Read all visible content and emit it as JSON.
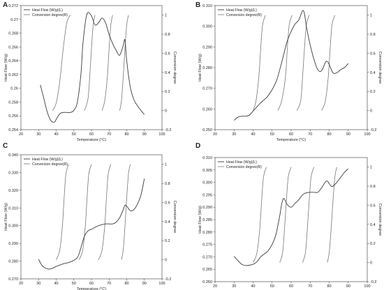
{
  "figure": {
    "colors": {
      "axis": "#333333",
      "heat_flow": "#3a3a3a",
      "conversion": "#777777",
      "background": "#ffffff"
    }
  },
  "chart_data": [
    {
      "panel": "A",
      "type": "line",
      "xlabel": "Temperature (°C)",
      "ylabel_left": "Heat Flow (W/g)",
      "ylabel_right": "Conversion degree",
      "xlim": [
        20,
        100
      ],
      "ylim_left": [
        0.254,
        0.272
      ],
      "ylim_right": [
        -0.2,
        1.1
      ],
      "x_ticks": [
        "20",
        "30",
        "40",
        "50",
        "60",
        "70",
        "80",
        "90",
        "100"
      ],
      "y_ticks_left": [
        "0.254",
        "0.256",
        "0.258",
        "0.26",
        "0.262",
        "0.264",
        "0.266",
        "0.268",
        "0.27",
        "0.272"
      ],
      "y_ticks_right": [
        "-0.2",
        "0",
        "0.2",
        "0.4",
        "0.6",
        "0.8",
        "1"
      ],
      "legend": [
        "Heat Flow (W/g)(L)",
        "Conversion degree(R)"
      ],
      "legend_position": "top-left",
      "grid": false,
      "series": [
        {
          "name": "Heat Flow (W/g)(L)",
          "axis": "left",
          "x": [
            31,
            33,
            35,
            37,
            39,
            40,
            42,
            44,
            46,
            48,
            50,
            52,
            54,
            55,
            56,
            57,
            58,
            60,
            62,
            64,
            66,
            68,
            70,
            72,
            74,
            76,
            78,
            79,
            80,
            82,
            84,
            86,
            88,
            90
          ],
          "y": [
            0.2605,
            0.2585,
            0.2565,
            0.2553,
            0.2551,
            0.2555,
            0.2563,
            0.2565,
            0.2565,
            0.2565,
            0.2568,
            0.258,
            0.262,
            0.266,
            0.2685,
            0.2703,
            0.271,
            0.2705,
            0.2692,
            0.2695,
            0.2702,
            0.2695,
            0.2678,
            0.2665,
            0.2655,
            0.2648,
            0.2662,
            0.267,
            0.264,
            0.2602,
            0.2584,
            0.2575,
            0.2568,
            0.2562
          ]
        },
        {
          "name": "Conversion degree(R)",
          "axis": "right",
          "curves": [
            {
              "x": [
                38,
                40,
                42,
                44,
                46,
                48
              ],
              "y": [
                0,
                0.08,
                0.3,
                0.65,
                0.92,
                1
              ]
            },
            {
              "x": [
                56,
                58,
                59,
                60,
                61,
                62
              ],
              "y": [
                0,
                0.12,
                0.35,
                0.65,
                0.9,
                1
              ]
            },
            {
              "x": [
                66,
                67.5,
                69,
                70,
                71,
                72
              ],
              "y": [
                0,
                0.1,
                0.35,
                0.65,
                0.9,
                1
              ]
            },
            {
              "x": [
                76,
                77,
                78,
                79,
                80,
                81
              ],
              "y": [
                0,
                0.1,
                0.35,
                0.65,
                0.9,
                1
              ]
            }
          ]
        }
      ]
    },
    {
      "panel": "B",
      "type": "line",
      "xlabel": "Temperature (°C)",
      "ylabel_left": "Heat Flow (W/g)",
      "ylabel_right": "Conversion degree",
      "xlim": [
        20,
        100
      ],
      "ylim_left": [
        0.25,
        0.31
      ],
      "ylim_right": [
        -0.2,
        1.1
      ],
      "x_ticks": [
        "20",
        "30",
        "40",
        "50",
        "60",
        "70",
        "80",
        "90",
        "100"
      ],
      "y_ticks_left": [
        "0.250",
        "0.260",
        "0.270",
        "0.280",
        "0.290",
        "0.300",
        "0.310"
      ],
      "y_ticks_right": [
        "-0.2",
        "0",
        "0.2",
        "0.4",
        "0.6",
        "0.8",
        "1"
      ],
      "legend": [
        "Heat Flow (W/g)(L)",
        "Conversion degree(R)"
      ],
      "legend_position": "top-left",
      "grid": false,
      "series": [
        {
          "name": "Heat Flow (W/g)(L)",
          "axis": "left",
          "x": [
            30,
            32,
            34,
            36,
            38,
            40,
            44,
            48,
            52,
            54,
            56,
            58,
            60,
            62,
            64,
            66,
            67,
            68,
            70,
            72,
            74,
            76,
            78,
            79,
            80,
            82,
            84,
            86,
            88,
            90
          ],
          "y": [
            0.2545,
            0.256,
            0.2565,
            0.2565,
            0.257,
            0.259,
            0.263,
            0.2665,
            0.273,
            0.279,
            0.286,
            0.293,
            0.2975,
            0.301,
            0.303,
            0.3075,
            0.306,
            0.3,
            0.291,
            0.284,
            0.279,
            0.2785,
            0.2825,
            0.283,
            0.2815,
            0.2775,
            0.2775,
            0.279,
            0.28,
            0.282
          ]
        },
        {
          "name": "Conversion degree(R)",
          "axis": "right",
          "curves": [
            {
              "x": [
                40,
                41.5,
                43,
                44,
                45,
                46.5
              ],
              "y": [
                0,
                0.1,
                0.35,
                0.65,
                0.9,
                1
              ]
            },
            {
              "x": [
                53,
                55,
                57,
                58,
                59,
                60.5
              ],
              "y": [
                0,
                0.1,
                0.35,
                0.65,
                0.9,
                1
              ]
            },
            {
              "x": [
                63,
                65,
                66,
                67,
                68,
                69.5
              ],
              "y": [
                0,
                0.1,
                0.35,
                0.65,
                0.9,
                1
              ]
            },
            {
              "x": [
                76,
                78,
                79.5,
                80.5,
                81.5,
                83
              ],
              "y": [
                0,
                0.1,
                0.35,
                0.65,
                0.9,
                1
              ]
            }
          ]
        }
      ]
    },
    {
      "panel": "C",
      "type": "line",
      "xlabel": "Temperature (°C)",
      "ylabel_left": "Heat Flow (W/g)",
      "ylabel_right": "Conversion degree",
      "xlim": [
        20,
        100
      ],
      "ylim_left": [
        0.27,
        0.34
      ],
      "ylim_right": [
        -0.2,
        1.1
      ],
      "x_ticks": [
        "20",
        "30",
        "40",
        "50",
        "60",
        "70",
        "80",
        "90",
        "100"
      ],
      "y_ticks_left": [
        "0.270",
        "0.280",
        "0.290",
        "0.300",
        "0.310",
        "0.320",
        "0.330",
        "0.340"
      ],
      "y_ticks_right": [
        "-0.2",
        "0",
        "0.2",
        "0.4",
        "0.6",
        "0.8",
        "1"
      ],
      "legend": [
        "Heat Flow (W/g)(L)",
        "Conversion degree(R)"
      ],
      "legend_position": "top-left",
      "grid": false,
      "series": [
        {
          "name": "Heat Flow (W/g)(L)",
          "axis": "left",
          "x": [
            30,
            32,
            34,
            36,
            38,
            40,
            44,
            48,
            52,
            54,
            56,
            58,
            60,
            64,
            68,
            72,
            74,
            76,
            78,
            79,
            80,
            82,
            84,
            86,
            88,
            90
          ],
          "y": [
            0.281,
            0.2775,
            0.276,
            0.2755,
            0.276,
            0.277,
            0.2785,
            0.2795,
            0.282,
            0.2875,
            0.294,
            0.297,
            0.298,
            0.3,
            0.301,
            0.301,
            0.302,
            0.3045,
            0.309,
            0.3115,
            0.311,
            0.3085,
            0.309,
            0.312,
            0.317,
            0.3265
          ]
        },
        {
          "name": "Conversion degree(R)",
          "axis": "right",
          "curves": [
            {
              "x": [
                40,
                42,
                43.5,
                44.5,
                45.5,
                47
              ],
              "y": [
                0,
                0.1,
                0.35,
                0.65,
                0.9,
                1
              ]
            },
            {
              "x": [
                53,
                55,
                56.5,
                57.5,
                58.5,
                60
              ],
              "y": [
                0,
                0.1,
                0.35,
                0.65,
                0.9,
                1
              ]
            },
            {
              "x": [
                64,
                66,
                67.5,
                68.5,
                69.5,
                71
              ],
              "y": [
                0,
                0.1,
                0.35,
                0.65,
                0.9,
                1
              ]
            },
            {
              "x": [
                77,
                78,
                79,
                80,
                81,
                82
              ],
              "y": [
                0,
                0.1,
                0.35,
                0.65,
                0.9,
                1
              ]
            }
          ]
        }
      ]
    },
    {
      "panel": "D",
      "type": "line",
      "xlabel": "Temperature (°C)",
      "ylabel_left": "Heat Flow (W/g)",
      "ylabel_right": "Conversion degree",
      "xlim": [
        20,
        100
      ],
      "ylim_left": [
        0.26,
        0.31
      ],
      "ylim_right": [
        -0.2,
        1.1
      ],
      "x_ticks": [
        "20",
        "30",
        "40",
        "50",
        "60",
        "70",
        "80",
        "90",
        "100"
      ],
      "y_ticks_left": [
        "0.260",
        "0.265",
        "0.270",
        "0.275",
        "0.280",
        "0.285",
        "0.290",
        "0.295",
        "0.300",
        "0.305",
        "0.310"
      ],
      "y_ticks_right": [
        "-0.2",
        "0",
        "0.2",
        "0.4",
        "0.6",
        "0.8",
        "1"
      ],
      "legend": [
        "Heat Flow (W/g)(L)",
        "Conversion degree(R)"
      ],
      "legend_position": "top-left",
      "grid": false,
      "series": [
        {
          "name": "Heat Flow (W/g)(L)",
          "axis": "left",
          "x": [
            30,
            32,
            34,
            36,
            38,
            40,
            42,
            44,
            46,
            48,
            50,
            52,
            54,
            55,
            56,
            57,
            58,
            60,
            62,
            64,
            66,
            68,
            70,
            72,
            74,
            76,
            78,
            79,
            80,
            81,
            82,
            84,
            86,
            88,
            90
          ],
          "y": [
            0.2702,
            0.2685,
            0.267,
            0.2665,
            0.2666,
            0.267,
            0.268,
            0.27,
            0.2712,
            0.2725,
            0.275,
            0.279,
            0.2865,
            0.2912,
            0.2935,
            0.2925,
            0.291,
            0.29,
            0.2915,
            0.293,
            0.295,
            0.2958,
            0.296,
            0.296,
            0.296,
            0.2978,
            0.3002,
            0.3005,
            0.2995,
            0.2985,
            0.2985,
            0.3,
            0.302,
            0.304,
            0.3055
          ]
        },
        {
          "name": "Conversion degree(R)",
          "axis": "right",
          "curves": [
            {
              "x": [
                40,
                42,
                43.5,
                44.5,
                45.5,
                47
              ],
              "y": [
                0,
                0.1,
                0.35,
                0.65,
                0.9,
                1
              ]
            },
            {
              "x": [
                54,
                55.5,
                56.5,
                57.5,
                58.5,
                60
              ],
              "y": [
                0,
                0.1,
                0.35,
                0.65,
                0.9,
                1
              ]
            },
            {
              "x": [
                66,
                67.5,
                68.5,
                69.5,
                70.5,
                72
              ],
              "y": [
                0,
                0.1,
                0.35,
                0.65,
                0.9,
                1
              ]
            },
            {
              "x": [
                79,
                80,
                81,
                82,
                83,
                84
              ],
              "y": [
                0,
                0.1,
                0.35,
                0.65,
                0.9,
                1
              ]
            }
          ]
        }
      ]
    }
  ]
}
